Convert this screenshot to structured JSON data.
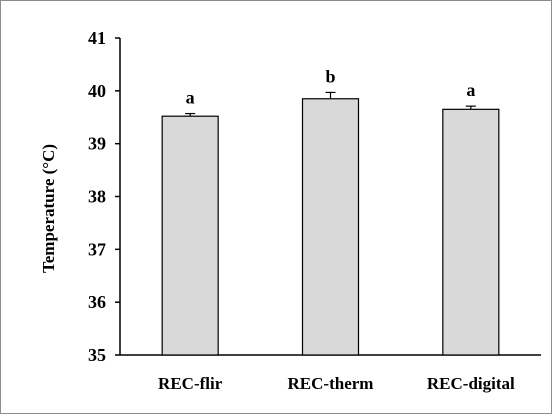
{
  "chart_data": {
    "type": "bar",
    "categories": [
      "REC-flir",
      "REC-therm",
      "REC-digital"
    ],
    "values": [
      39.52,
      39.85,
      39.65
    ],
    "errors": [
      0.05,
      0.12,
      0.06
    ],
    "significance": [
      "a",
      "b",
      "a"
    ],
    "title": "",
    "xlabel": "",
    "ylabel": "Temperature (°C)",
    "ylim": [
      35,
      41
    ],
    "yticks": [
      "35",
      "36",
      "37",
      "38",
      "39",
      "40",
      "41"
    ],
    "grid": false,
    "legend": "none",
    "colors": {
      "bar_fill": "#d9d9d9",
      "bar_stroke": "#000000",
      "axis": "#000000",
      "border": "#8c8c8c"
    }
  }
}
